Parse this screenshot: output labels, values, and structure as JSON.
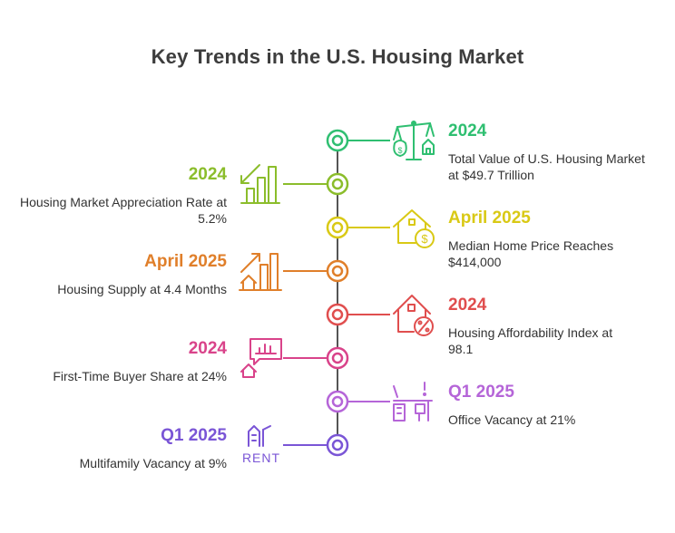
{
  "title": "Key Trends in the U.S. Housing Market",
  "colors": {
    "green": "#2fbf71",
    "olive": "#8bbd2b",
    "yellow": "#d9c915",
    "orange": "#e07f2a",
    "red": "#e04e4e",
    "pink": "#d9438a",
    "violet": "#b565d8",
    "purple": "#7a55d6",
    "spine": "#555555"
  },
  "events": [
    {
      "side": "right",
      "period": "2024",
      "text": "Total Value of U.S. Housing Market at $49.7 Trillion",
      "icon": "scale-money-house-icon",
      "color": "#2fbf71"
    },
    {
      "side": "left",
      "period": "2024",
      "text": "Housing Market Appreciation Rate at 5.2%",
      "icon": "appreciation-bars-icon",
      "color": "#8bbd2b"
    },
    {
      "side": "right",
      "period": "April 2025",
      "text": "Median Home Price Reaches $414,000",
      "icon": "house-dollar-icon",
      "color": "#d9c915"
    },
    {
      "side": "left",
      "period": "April 2025",
      "text": "Housing Supply at 4.4 Months",
      "icon": "supply-growth-icon",
      "color": "#e07f2a"
    },
    {
      "side": "right",
      "period": "2024",
      "text": "Housing Affordability Index at 98.1",
      "icon": "house-percent-icon",
      "color": "#e04e4e"
    },
    {
      "side": "left",
      "period": "2024",
      "text": "First-Time Buyer Share at 24%",
      "icon": "chart-bubble-house-icon",
      "color": "#d9438a"
    },
    {
      "side": "right",
      "period": "Q1 2025",
      "text": "Office Vacancy at 21%",
      "icon": "office-desk-icon",
      "color": "#b565d8"
    },
    {
      "side": "left",
      "period": "Q1 2025",
      "text": "Multifamily Vacancy at 9%",
      "icon": "rent-building-icon",
      "color": "#7a55d6"
    }
  ],
  "icon_text": {
    "rent": "RENT"
  }
}
